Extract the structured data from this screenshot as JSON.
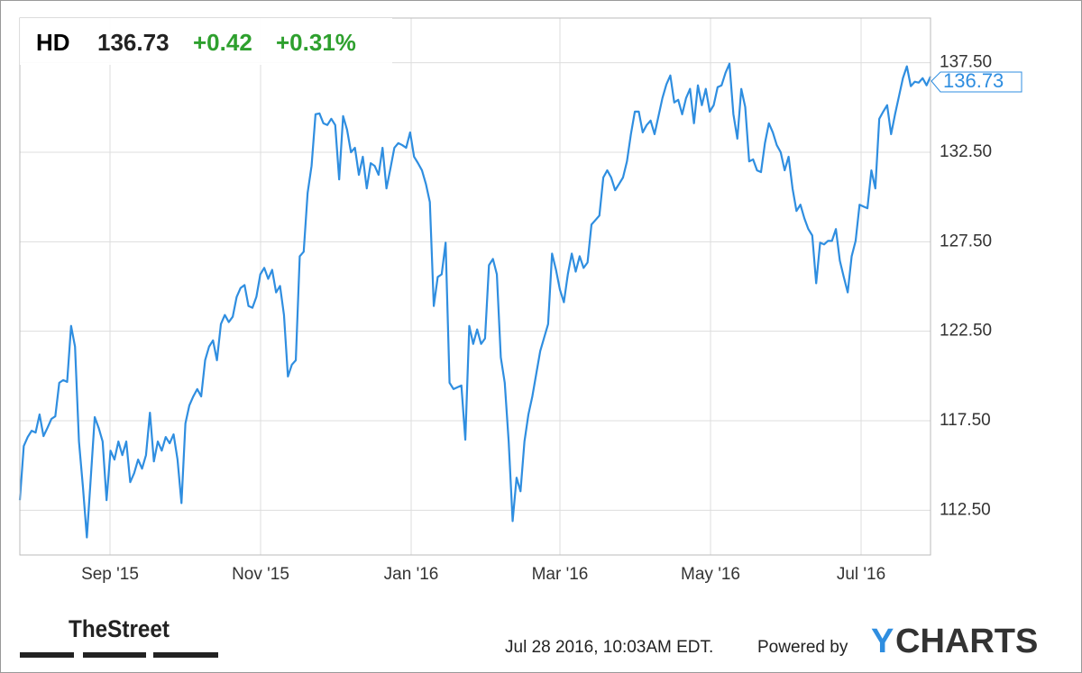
{
  "chart_data": {
    "type": "line",
    "header": {
      "ticker": "HD",
      "price": 136.73,
      "change": "+0.42",
      "change_pct": "+0.31%"
    },
    "series": [
      {
        "name": "HD",
        "color": "#2f8ee0",
        "values": [
          113.06,
          116.09,
          116.59,
          116.94,
          116.84,
          117.85,
          116.64,
          117.1,
          117.6,
          117.75,
          119.62,
          119.77,
          119.67,
          122.8,
          121.64,
          116.34,
          113.81,
          110.98,
          114.32,
          117.7,
          117.1,
          116.34,
          113.06,
          115.83,
          115.33,
          116.34,
          115.58,
          116.34,
          114.07,
          114.57,
          115.33,
          114.82,
          115.58,
          117.95,
          115.23,
          116.34,
          115.83,
          116.59,
          116.24,
          116.74,
          115.33,
          112.9,
          117.35,
          118.36,
          118.86,
          119.27,
          118.86,
          120.88,
          121.64,
          121.99,
          120.88,
          122.9,
          123.41,
          123.01,
          123.31,
          124.42,
          124.92,
          125.08,
          123.91,
          123.81,
          124.42,
          125.68,
          126.04,
          125.43,
          125.93,
          124.67,
          125.03,
          123.41,
          119.97,
          120.63,
          120.88,
          126.69,
          126.94,
          130.23,
          131.74,
          134.62,
          134.67,
          134.12,
          134.02,
          134.37,
          134.02,
          130.98,
          134.52,
          133.76,
          132.5,
          132.75,
          131.24,
          132.25,
          130.48,
          131.89,
          131.74,
          131.24,
          132.75,
          130.48,
          131.59,
          132.75,
          133.01,
          132.9,
          132.75,
          133.61,
          132.25,
          131.89,
          131.49,
          130.73,
          129.72,
          123.91,
          125.53,
          125.68,
          127.45,
          119.62,
          119.27,
          119.37,
          119.47,
          116.44,
          122.8,
          121.79,
          122.6,
          121.79,
          122.1,
          126.19,
          126.54,
          125.68,
          121.04,
          119.62,
          116.34,
          111.89,
          114.32,
          113.56,
          116.34,
          117.85,
          118.86,
          120.13,
          121.39,
          122.15,
          122.9,
          126.84,
          125.93,
          124.82,
          124.12,
          125.68,
          126.84,
          125.83,
          126.69,
          126.04,
          126.34,
          128.46,
          128.71,
          128.96,
          131.09,
          131.49,
          131.09,
          130.38,
          130.73,
          131.09,
          131.99,
          133.51,
          134.77,
          134.77,
          133.61,
          134.02,
          134.27,
          133.51,
          134.52,
          135.53,
          136.29,
          136.79,
          135.28,
          135.43,
          134.62,
          135.53,
          136.04,
          134.12,
          136.24,
          135.13,
          136.04,
          134.77,
          135.13,
          136.14,
          136.24,
          136.94,
          137.45,
          134.62,
          133.26,
          136.04,
          135.03,
          131.99,
          132.1,
          131.49,
          131.39,
          133.01,
          134.12,
          133.61,
          132.9,
          132.5,
          131.49,
          132.25,
          130.48,
          129.22,
          129.57,
          128.81,
          128.21,
          127.85,
          125.18,
          127.45,
          127.35,
          127.55,
          127.55,
          128.21,
          126.44,
          125.53,
          124.67,
          126.69,
          127.55,
          129.57,
          129.47,
          129.37,
          131.49,
          130.48,
          134.37,
          134.77,
          135.13,
          133.51,
          134.62,
          135.63,
          136.64,
          137.3,
          136.19,
          136.44,
          136.39,
          136.64,
          136.24,
          136.73
        ]
      }
    ],
    "ylim": [
      110,
      140
    ],
    "yticks": [
      {
        "value": 112.5,
        "label": "112.50"
      },
      {
        "value": 117.5,
        "label": "117.50"
      },
      {
        "value": 122.5,
        "label": "122.50"
      },
      {
        "value": 127.5,
        "label": "127.50"
      },
      {
        "value": 132.5,
        "label": "132.50"
      },
      {
        "value": 137.5,
        "label": "137.50"
      }
    ],
    "xtick_labels": [
      "Sep '15",
      "Nov '15",
      "Jan '16",
      "Mar '16",
      "May '16",
      "Jul '16"
    ],
    "grid": true,
    "footer": {
      "brand": "TheStreet",
      "timestamp": "Jul 28 2016, 10:03AM EDT.",
      "powered_by": "Powered by",
      "logo_first": "Y",
      "logo_rest": "CHARTS"
    }
  }
}
